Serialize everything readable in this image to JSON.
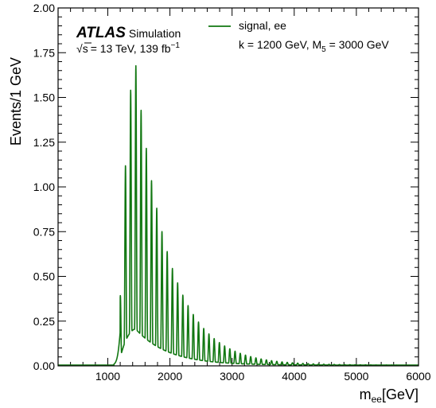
{
  "chart_data": {
    "type": "line",
    "title": "",
    "xlabel": {
      "base": "m",
      "sub": "ee",
      "unit": "[GeV]"
    },
    "ylabel": "Events/1 GeV",
    "xlim": [
      200,
      6000
    ],
    "ylim": [
      0,
      2.0
    ],
    "x_ticks": [
      1000,
      2000,
      3000,
      4000,
      5000,
      6000
    ],
    "y_ticks": [
      "0.00",
      "0.25",
      "0.50",
      "0.75",
      "1.00",
      "1.25",
      "1.50",
      "1.75",
      "2.00"
    ],
    "grid": false,
    "legend_position": "top-right",
    "series": [
      {
        "name": "signal, ee",
        "color": "#117711",
        "model": {
          "threshold": 1200,
          "onset_width": 30,
          "peak_x": 1450,
          "peak_height": 1.68,
          "left_shape": 280,
          "right_decay": 520,
          "oscillation_period": 84,
          "min_fraction": 0.12,
          "tail_level": 0.004
        },
        "peak_heights": [
          {
            "x": 1280,
            "y": 0.82
          },
          {
            "x": 1330,
            "y": 1.35
          },
          {
            "x": 1380,
            "y": 1.59
          },
          {
            "x": 1430,
            "y": 1.68
          },
          {
            "x": 1480,
            "y": 1.64
          },
          {
            "x": 1540,
            "y": 1.55
          },
          {
            "x": 1620,
            "y": 1.4
          },
          {
            "x": 1700,
            "y": 1.24
          },
          {
            "x": 1780,
            "y": 1.09
          },
          {
            "x": 1870,
            "y": 0.94
          },
          {
            "x": 1960,
            "y": 0.8
          },
          {
            "x": 2050,
            "y": 0.68
          },
          {
            "x": 2150,
            "y": 0.57
          },
          {
            "x": 2250,
            "y": 0.47
          },
          {
            "x": 2350,
            "y": 0.38
          },
          {
            "x": 2450,
            "y": 0.31
          },
          {
            "x": 2550,
            "y": 0.25
          },
          {
            "x": 2700,
            "y": 0.18
          },
          {
            "x": 2850,
            "y": 0.13
          },
          {
            "x": 3000,
            "y": 0.09
          },
          {
            "x": 3200,
            "y": 0.06
          },
          {
            "x": 3500,
            "y": 0.03
          },
          {
            "x": 4000,
            "y": 0.01
          }
        ]
      }
    ]
  },
  "annotations": {
    "experiment": "ATLAS",
    "status": "Simulation",
    "sqrt_symbol": "√",
    "s_letter": "s",
    "energy": "= 13 TeV, 139 fb",
    "lumi_sup": "−1",
    "params_k": "k = 1200 GeV, M",
    "params_sub": "5",
    "params_rest": " = 3000 GeV"
  }
}
